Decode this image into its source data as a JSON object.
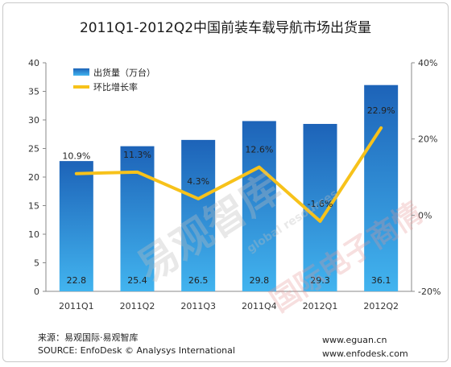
{
  "chart_data": {
    "type": "bar",
    "title": "2011Q1-2012Q2中国前装车载导航市场出货量",
    "categories": [
      "2011Q1",
      "2011Q2",
      "2011Q3",
      "2011Q4",
      "2012Q1",
      "2012Q2"
    ],
    "series": [
      {
        "name": "出货量（万台）",
        "type": "bar",
        "axis": "left",
        "values": [
          22.8,
          25.4,
          26.5,
          29.8,
          29.3,
          36.1
        ],
        "labels": [
          "22.8",
          "25.4",
          "26.5",
          "29.8",
          "29.3",
          "36.1"
        ]
      },
      {
        "name": "环比增长率",
        "type": "line",
        "axis": "right",
        "values": [
          10.9,
          11.3,
          4.3,
          12.6,
          -1.6,
          22.9
        ],
        "labels": [
          "10.9%",
          "11.3%",
          "4.3%",
          "12.6%",
          "-1.6%",
          "22.9%"
        ]
      }
    ],
    "left_axis": {
      "ylim": [
        0,
        40
      ],
      "ticks": [
        "0",
        "5",
        "10",
        "15",
        "20",
        "25",
        "30",
        "35",
        "40"
      ]
    },
    "right_axis": {
      "ylim": [
        -20,
        40
      ],
      "ticks": [
        "-20%",
        "0%",
        "20%",
        "40%"
      ]
    },
    "legend_position": "top-left",
    "grid": false,
    "colors": {
      "bar_top": "#1d63b8",
      "bar_bottom": "#42b4ef",
      "line": "#f7c21a"
    }
  },
  "footer": {
    "source_cn": "来源：易观国际·易观智库",
    "source_en": "SOURCE: EnfoDesk © Analysys International",
    "url1": "www.eguan.cn",
    "url2": "www.enfodesk.com"
  },
  "watermarks": {
    "main": "易观智库",
    "sub": "global resources",
    "side": "国际电子商情"
  }
}
